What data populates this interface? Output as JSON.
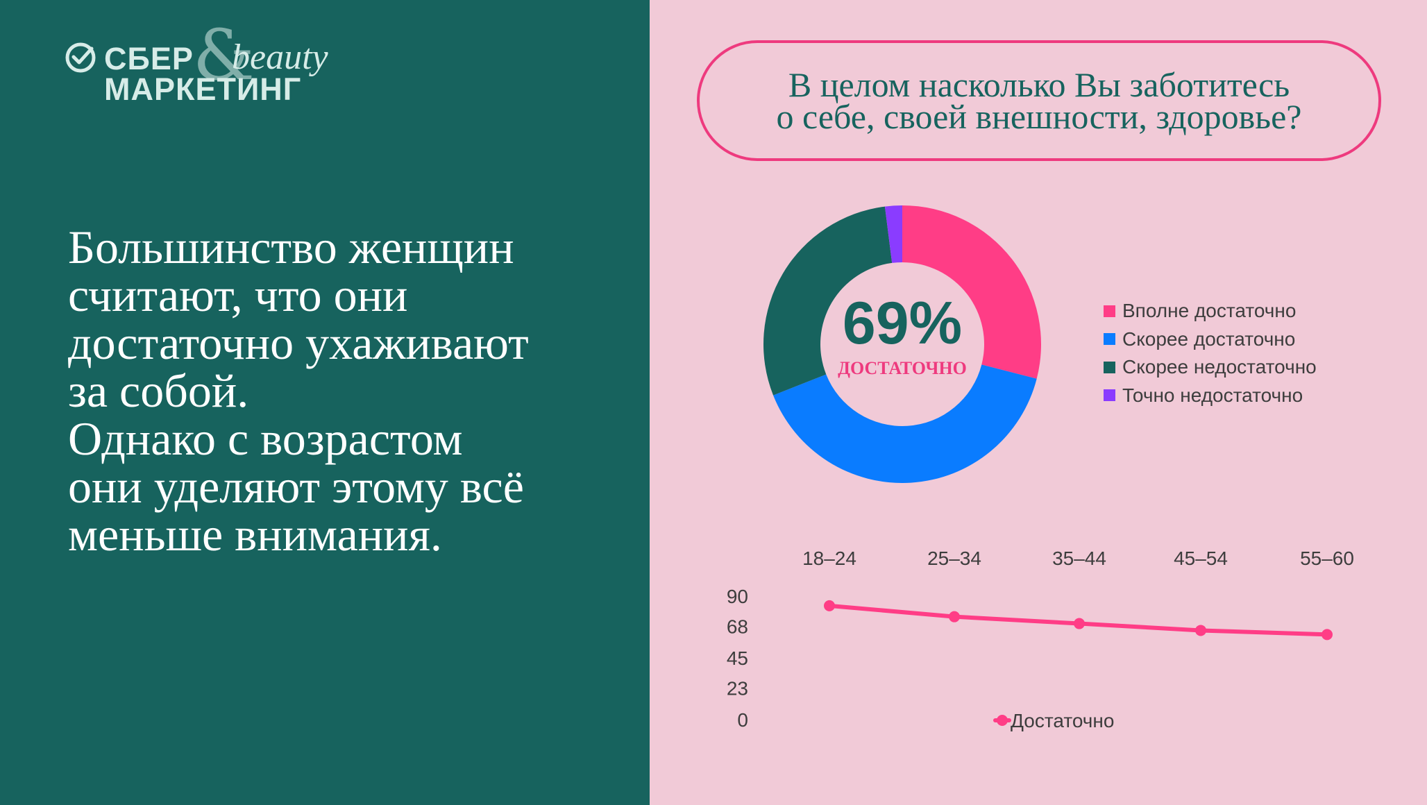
{
  "logo": {
    "line1": "СБЕР",
    "line2": "МАРКЕТИНГ",
    "ampersand": "&",
    "script": "beauty",
    "icon": "check-circle-icon"
  },
  "headline": "Большинство женщин\nсчитают, что они\nдостаточно ухаживают\nза собой.\nОднако с возрастом\nони уделяют этому всё\nменьше внимания.",
  "question": "В целом насколько Вы заботитесь\nо себе, своей внешности, здоровье?",
  "colors": {
    "left_bg": "#17635e",
    "right_bg": "#f1cad7",
    "pink": "#ff3d86",
    "blue": "#0a7cff",
    "green": "#17635e",
    "purple": "#8a3cff"
  },
  "chart_data": [
    {
      "type": "pie",
      "variant": "donut",
      "center_value": "69%",
      "center_label": "достаточно",
      "legend_placement": "right",
      "series": [
        {
          "name": "Вполне достаточно",
          "value": 29,
          "color": "#ff3d86"
        },
        {
          "name": "Скорее достаточно",
          "value": 40,
          "color": "#0a7cff"
        },
        {
          "name": "Скорее недостаточно",
          "value": 29,
          "color": "#17635e"
        },
        {
          "name": "Точно недостаточно",
          "value": 2,
          "color": "#8a3cff"
        }
      ]
    },
    {
      "type": "line",
      "categories": [
        "18–24",
        "25–34",
        "35–44",
        "45–54",
        "55–60"
      ],
      "yticks": [
        "90",
        "68",
        "45",
        "23",
        "0"
      ],
      "ylim": [
        0,
        90
      ],
      "grid": false,
      "xaxis_position": "top",
      "legend_placement": "bottom",
      "series": [
        {
          "name": "Достаточно",
          "values": [
            83,
            75,
            70,
            65,
            62
          ],
          "color": "#ff3d86"
        }
      ]
    }
  ]
}
